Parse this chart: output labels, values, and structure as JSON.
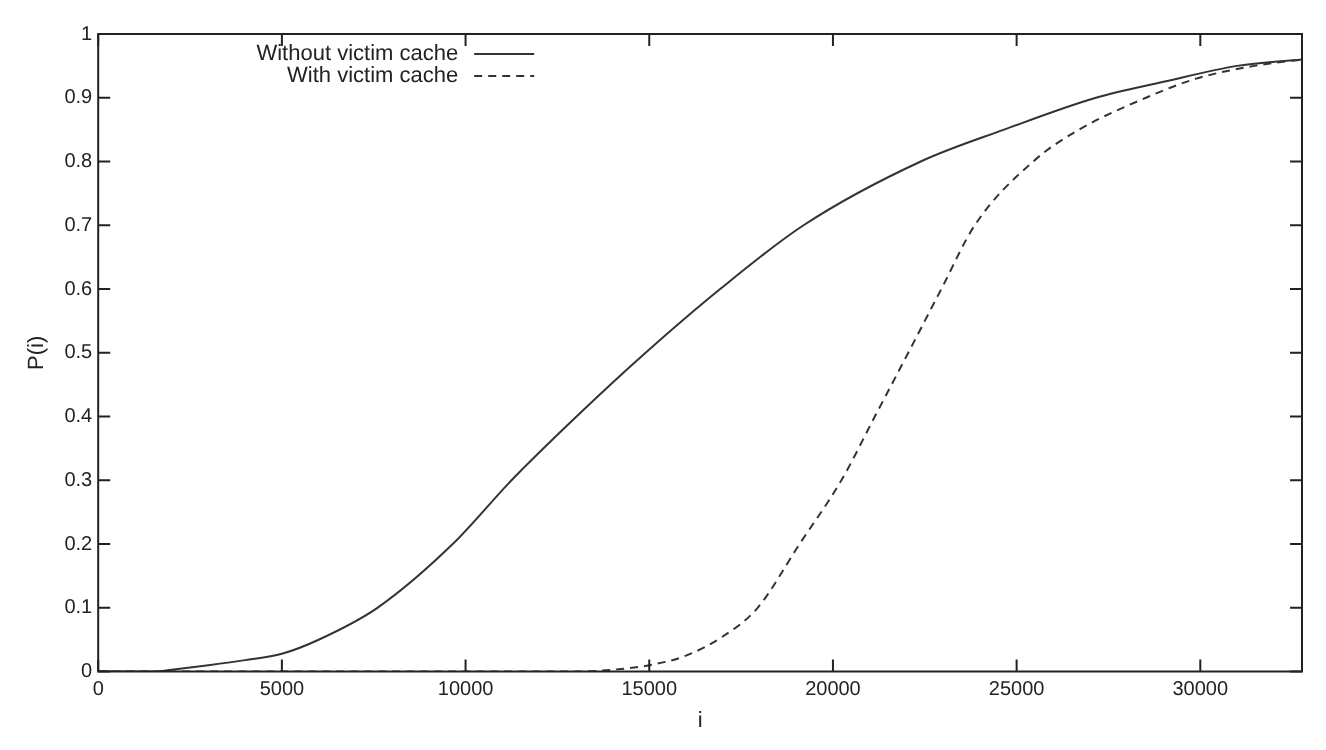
{
  "chart_data": {
    "type": "line",
    "xlabel": "i",
    "ylabel": "P(i)",
    "xlim": [
      0,
      32768
    ],
    "xticks": [
      0,
      5000,
      10000,
      15000,
      20000,
      25000,
      30000
    ],
    "ylim": [
      0,
      1
    ],
    "yticks": [
      0,
      0.1,
      0.2,
      0.3,
      0.4,
      0.5,
      0.6,
      0.7,
      0.8,
      0.9,
      1
    ],
    "legend": "top left",
    "grid": false,
    "marker": "none",
    "series": [
      {
        "name": "Without victim cache",
        "color": "#333333",
        "line_style": "solid",
        "x": [
          0,
          1500,
          2000,
          3000,
          4000,
          5000,
          6000,
          7600,
          9650,
          11250,
          13020,
          14900,
          16930,
          19200,
          22390,
          24660,
          27160,
          29000,
          31000,
          32768
        ],
        "values": [
          0,
          0,
          0.003,
          0.01,
          0.018,
          0.028,
          0.05,
          0.1,
          0.2,
          0.3,
          0.4,
          0.5,
          0.6,
          0.7,
          0.8,
          0.85,
          0.9,
          0.925,
          0.95,
          0.96
        ]
      },
      {
        "name": "With victim cache",
        "color": "#333333",
        "line_style": "dashed",
        "x": [
          0,
          13000,
          14000,
          15000,
          16000,
          17000,
          17950,
          19090,
          20230,
          21140,
          22050,
          22950,
          23860,
          25450,
          26700,
          28520,
          29890,
          31470,
          32768
        ],
        "values": [
          0,
          0,
          0.003,
          0.01,
          0.025,
          0.055,
          0.1,
          0.2,
          0.3,
          0.4,
          0.5,
          0.6,
          0.7,
          0.8,
          0.85,
          0.9,
          0.93,
          0.95,
          0.96
        ]
      }
    ]
  }
}
